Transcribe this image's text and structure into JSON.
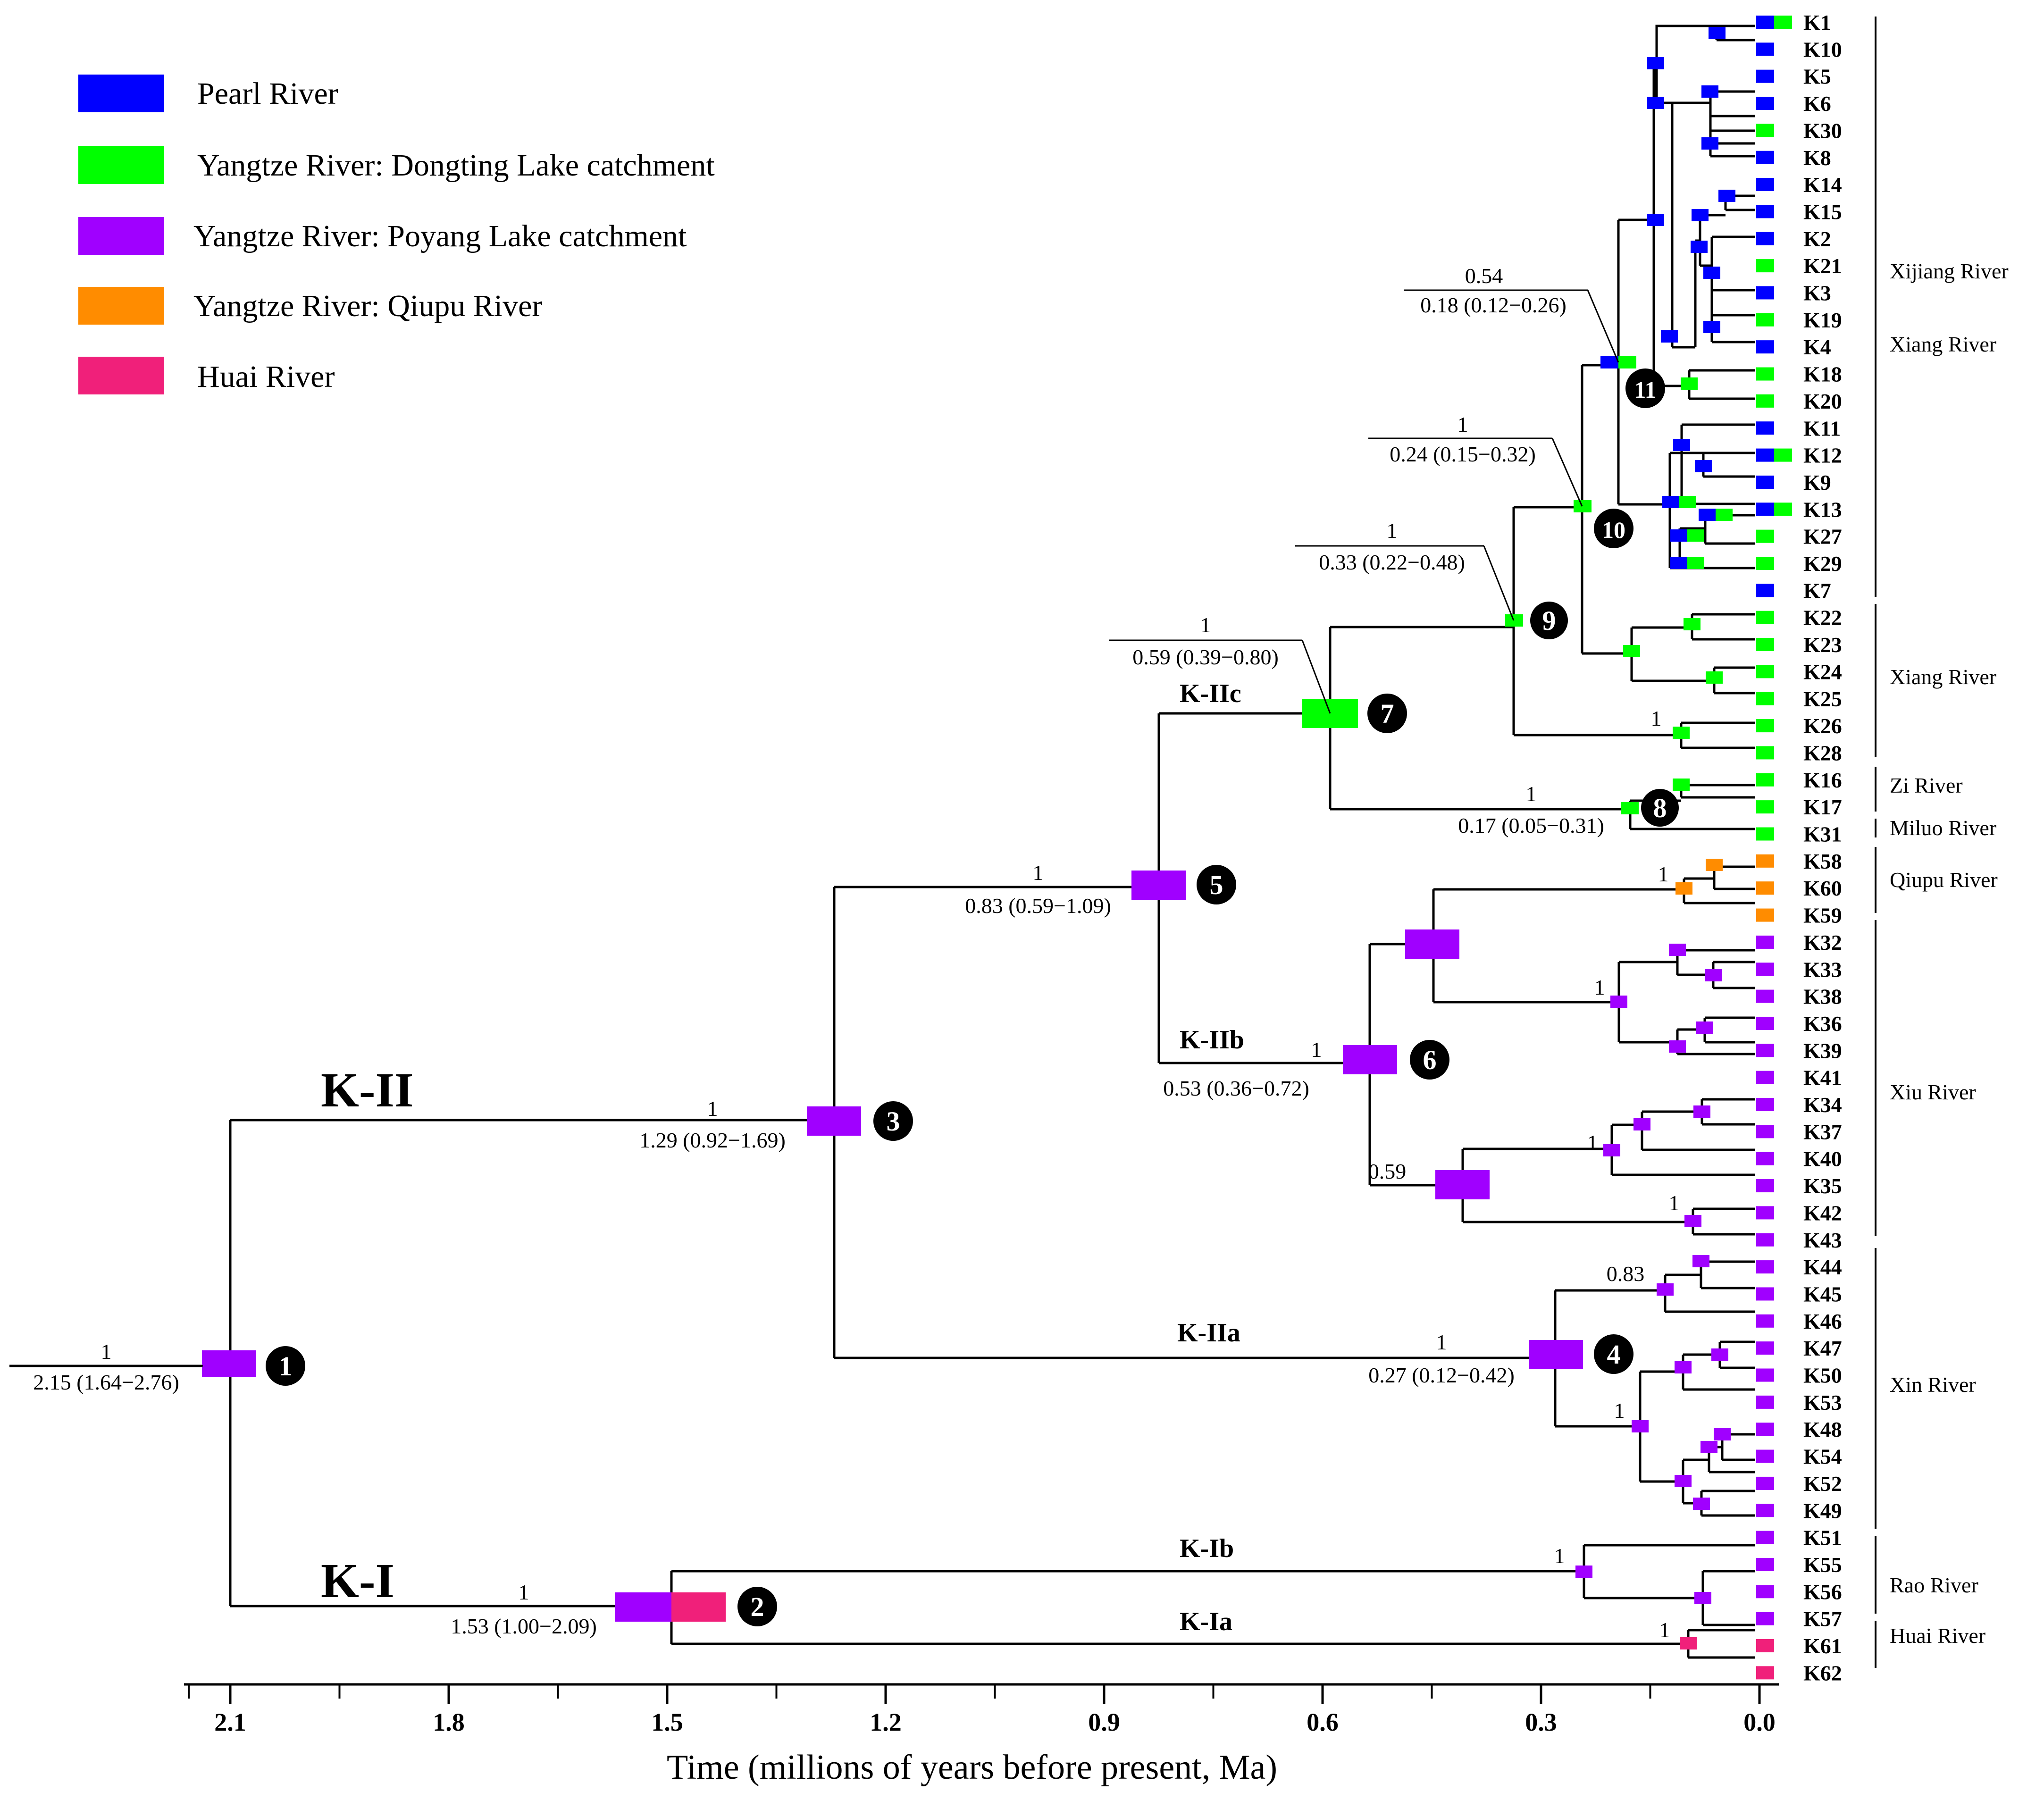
{
  "legend": [
    {
      "label": "Pearl River",
      "color": "#0000ff"
    },
    {
      "label": "Yangtze River: Dongting Lake catchment",
      "color": "#00ff00"
    },
    {
      "label": "Yangtze River: Poyang Lake catchment",
      "color": "#a000ff"
    },
    {
      "label": "Yangtze River: Qiupu River",
      "color": "#ff8c00"
    },
    {
      "label": "Huai River",
      "color": "#f0207a"
    }
  ],
  "axis": {
    "title": "Time (millions of years before present, Ma)",
    "ticks": [
      "2.1",
      "1.8",
      "1.5",
      "1.2",
      "0.9",
      "0.6",
      "0.3",
      "0.0"
    ]
  },
  "clades": {
    "KII": "K-II",
    "KI": "K-I",
    "KIIa": "K-IIa",
    "KIIb": "K-IIb",
    "KIIc": "K-IIc",
    "KIa": "K-Ia",
    "KIb": "K-Ib"
  },
  "node_labels": {
    "n1_support": "1",
    "n1_age": "2.15 (1.64−2.76)",
    "n2_support": "1",
    "n2_age": "1.53 (1.00−2.09)",
    "n3_support": "1",
    "n3_age": "1.29 (0.92−1.69)",
    "n4_support": "1",
    "n4_age": "0.27 (0.12−0.42)",
    "n5_support": "1",
    "n5_age": "0.83 (0.59−1.09)",
    "n6_support": "1",
    "n6_age": "0.53 (0.36−0.72)",
    "n7_support": "1",
    "n7_age": "0.59 (0.39−0.80)",
    "n8_support": "1",
    "n8_age": "0.17 (0.05−0.31)",
    "n9_support": "1",
    "n9_age": "0.33 (0.22−0.48)",
    "n10_support": "1",
    "n10_age": "0.24 (0.15−0.32)",
    "n11_support": "0.54",
    "n11_age": "0.18 (0.12−0.26)",
    "s_qiupu": "1",
    "s_k32": "1",
    "s_k26": "1",
    "s_iib2": "0.59",
    "s_k34": "1",
    "s_k42": "1",
    "s_k44": "0.83",
    "s_k47": "1",
    "s_k55": "1",
    "s_k61": "1"
  },
  "node_numbers": [
    "1",
    "2",
    "3",
    "4",
    "5",
    "6",
    "7",
    "8",
    "9",
    "10",
    "11"
  ],
  "tips": [
    "K1",
    "K10",
    "K5",
    "K6",
    "K30",
    "K8",
    "K14",
    "K15",
    "K2",
    "K21",
    "K3",
    "K19",
    "K4",
    "K18",
    "K20",
    "K11",
    "K12",
    "K9",
    "K13",
    "K27",
    "K29",
    "K7",
    "K22",
    "K23",
    "K24",
    "K25",
    "K26",
    "K28",
    "K16",
    "K17",
    "K31",
    "K58",
    "K60",
    "K59",
    "K32",
    "K33",
    "K38",
    "K36",
    "K39",
    "K41",
    "K34",
    "K37",
    "K40",
    "K35",
    "K42",
    "K43",
    "K44",
    "K45",
    "K46",
    "K47",
    "K50",
    "K53",
    "K48",
    "K54",
    "K52",
    "K49",
    "K51",
    "K55",
    "K56",
    "K57",
    "K61",
    "K62"
  ],
  "regions": [
    "Xijiang River",
    "Xiang River",
    "Xiang River",
    "Zi River",
    "Miluo River",
    "Qiupu River",
    "Xiu River",
    "Xin River",
    "Rao River",
    "Huai River"
  ]
}
